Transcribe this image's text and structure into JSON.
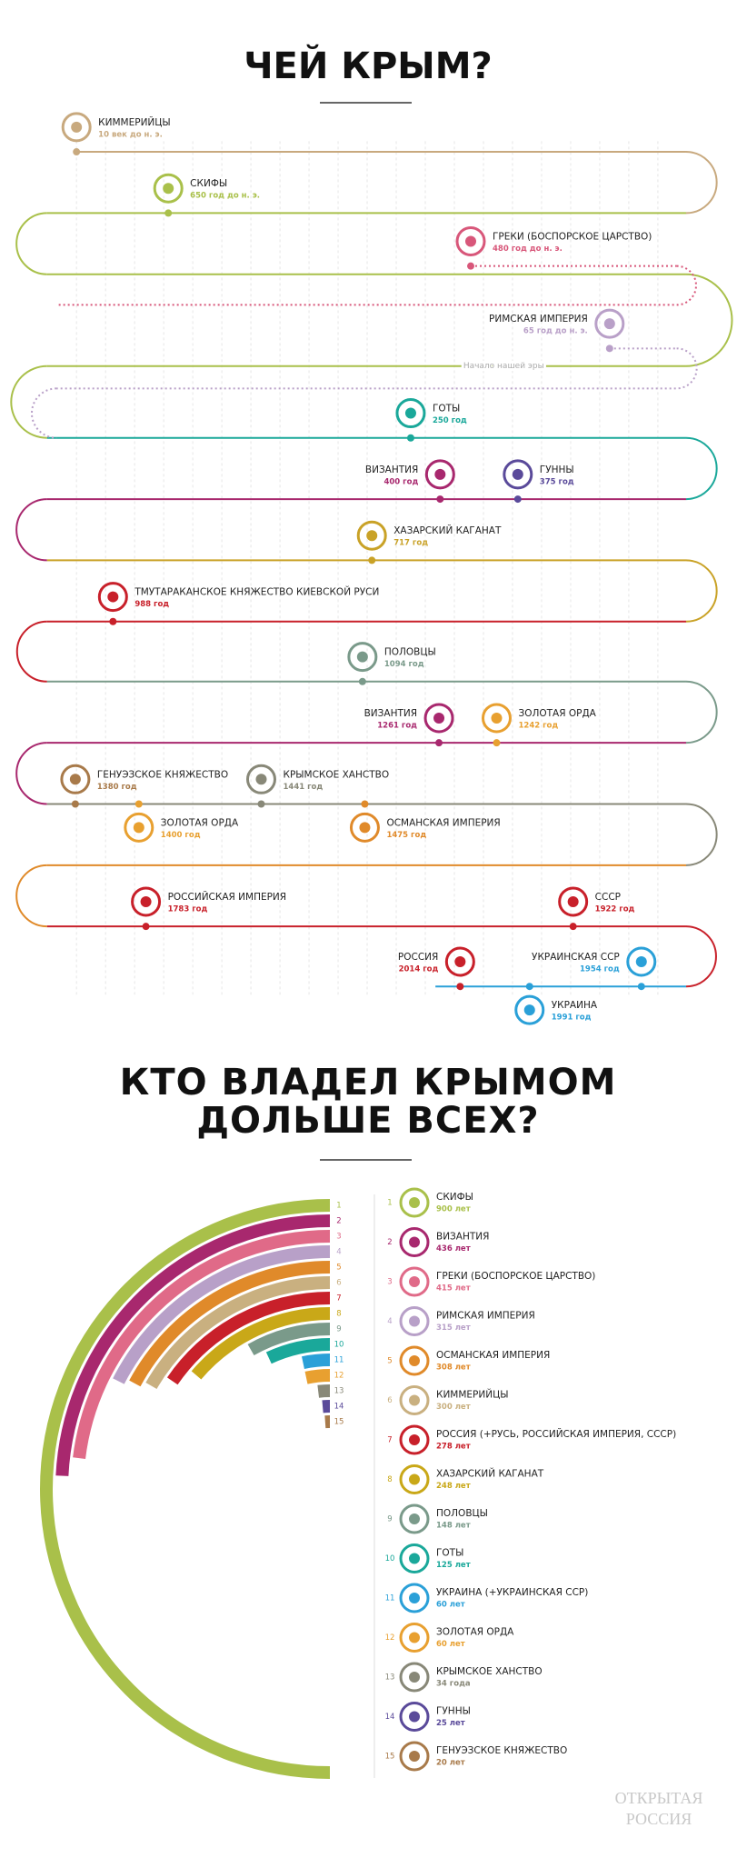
{
  "header": {
    "title": "ЧЕЙ КРЫМ?"
  },
  "timeline": {
    "era_note": "Начало нашей эры",
    "events": [
      {
        "name": "КИММЕРИЙЦЫ",
        "date": "10 век до н. э.",
        "color": "#c8a97e"
      },
      {
        "name": "СКИФЫ",
        "date": "650 год до н. э.",
        "color": "#a9c04a"
      },
      {
        "name": "ГРЕКИ (БОСПОРСКОЕ ЦАРСТВО)",
        "date": "480 год до н. э.",
        "color": "#d8577a"
      },
      {
        "name": "РИМСКАЯ ИМПЕРИЯ",
        "date": "65 год до н. э.",
        "color": "#b9a0c8"
      },
      {
        "name": "ГОТЫ",
        "date": "250 год",
        "color": "#1aa89a"
      },
      {
        "name": "ВИЗАНТИЯ",
        "date": "400 год",
        "color": "#a8286e"
      },
      {
        "name": "ГУННЫ",
        "date": "375 год",
        "color": "#5a4a9a"
      },
      {
        "name": "ХАЗАРСКИЙ КАГАНАТ",
        "date": "717 год",
        "color": "#c9a227"
      },
      {
        "name": "ТМУТАРАКАНСКОЕ КНЯЖЕСТВО КИЕВСКОЙ РУСИ",
        "date": "988 год",
        "color": "#c8202a"
      },
      {
        "name": "ПОЛОВЦЫ",
        "date": "1094 год",
        "color": "#7a9a8a"
      },
      {
        "name": "ВИЗАНТИЯ",
        "date": "1261 год",
        "color": "#a8286e"
      },
      {
        "name": "ЗОЛОТАЯ ОРДА",
        "date": "1242 год",
        "color": "#e8a030"
      },
      {
        "name": "ГЕНУЭЗСКОЕ КНЯЖЕСТВО",
        "date": "1380 год",
        "color": "#a87a4a"
      },
      {
        "name": "КРЫМСКОЕ ХАНСТВО",
        "date": "1441 год",
        "color": "#888878"
      },
      {
        "name": "ЗОЛОТАЯ ОРДА",
        "date": "1400 год",
        "color": "#e8a030"
      },
      {
        "name": "ОСМАНСКАЯ ИМПЕРИЯ",
        "date": "1475 год",
        "color": "#e08a2a"
      },
      {
        "name": "РОССИЙСКАЯ ИМПЕРИЯ",
        "date": "1783 год",
        "color": "#c8202a"
      },
      {
        "name": "СССР",
        "date": "1922 год",
        "color": "#c8202a"
      },
      {
        "name": "РОССИЯ",
        "date": "2014 год",
        "color": "#c8202a"
      },
      {
        "name": "УКРАИНСКАЯ ССР",
        "date": "1954 год",
        "color": "#2aa0d8"
      },
      {
        "name": "УКРАИНА",
        "date": "1991 год",
        "color": "#2aa0d8"
      }
    ]
  },
  "chart_data": {
    "type": "radial_bar",
    "title": "КТО ВЛАДЕЛ КРЫМОМ ДОЛЬШЕ ВСЕХ?",
    "ranks": [
      1,
      2,
      3,
      4,
      5,
      6,
      7,
      8,
      9,
      10,
      11,
      12,
      13,
      14,
      15
    ],
    "categories": [
      "СКИФЫ",
      "ВИЗАНТИЯ",
      "ГРЕКИ (БОСПОРСКОЕ ЦАРСТВО)",
      "РИМСКАЯ ИМПЕРИЯ",
      "ОСМАНСКАЯ ИМПЕРИЯ",
      "КИММЕРИЙЦЫ",
      "РОССИЯ (+РУСЬ, РОССИЙСКАЯ ИМПЕРИЯ, СССР)",
      "ХАЗАРСКИЙ КАГАНАТ",
      "ПОЛОВЦЫ",
      "ГОТЫ",
      "УКРАИНА (+УКРАИНСКАЯ ССР)",
      "ЗОЛОТАЯ ОРДА",
      "КРЫМСКОЕ ХАНСТВО",
      "ГУННЫ",
      "ГЕНУЭЗСКОЕ КНЯЖЕСТВО"
    ],
    "values": [
      900,
      436,
      415,
      315,
      308,
      300,
      278,
      248,
      148,
      125,
      60,
      60,
      34,
      25,
      20
    ],
    "value_labels": [
      "900 лет",
      "436 лет",
      "415 лет",
      "315 лет",
      "308 лет",
      "300 лет",
      "278 лет",
      "248 лет",
      "148 лет",
      "125 лет",
      "60 лет",
      "60 лет",
      "34 года",
      "25 лет",
      "20 лет"
    ],
    "colors": [
      "#a9c04a",
      "#a8286e",
      "#e06a88",
      "#b8a0c8",
      "#e08a2a",
      "#c9b080",
      "#c8202a",
      "#c9a818",
      "#7a9a8a",
      "#1aa89a",
      "#2aa0d8",
      "#e8a030",
      "#888878",
      "#5a4a9a",
      "#a87a4a"
    ]
  },
  "footer": {
    "logo": [
      "ОТКРЫТАЯ",
      "РОССИЯ"
    ]
  }
}
